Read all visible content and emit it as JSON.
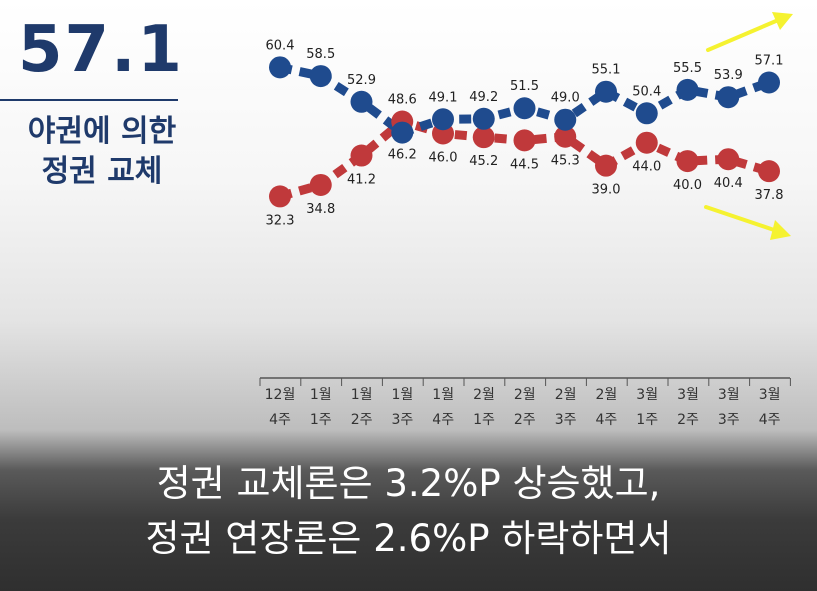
{
  "headline": {
    "value": "57.1",
    "label_line1": "야권에 의한",
    "label_line2": "정권 교체"
  },
  "subtitle": {
    "line1": "정권 교체론은 3.2%P 상승했고,",
    "line2": "정권 연장론은 2.6%P 하락하면서"
  },
  "chart_data": {
    "type": "line",
    "categories": [
      [
        "12월",
        "4주"
      ],
      [
        "1월",
        "1주"
      ],
      [
        "1월",
        "2주"
      ],
      [
        "1월",
        "3주"
      ],
      [
        "1월",
        "4주"
      ],
      [
        "2월",
        "1주"
      ],
      [
        "2월",
        "2주"
      ],
      [
        "2월",
        "3주"
      ],
      [
        "2월",
        "4주"
      ],
      [
        "3월",
        "1주"
      ],
      [
        "3월",
        "2주"
      ],
      [
        "3월",
        "3주"
      ],
      [
        "3월",
        "4주"
      ]
    ],
    "series": [
      {
        "values": [
          60.4,
          58.5,
          52.9,
          46.2,
          49.1,
          49.2,
          51.5,
          49.0,
          55.1,
          50.4,
          55.5,
          53.9,
          57.1
        ],
        "color": "#1f4b8e",
        "trend": "up"
      },
      {
        "values": [
          32.3,
          34.8,
          41.2,
          48.6,
          46.0,
          45.2,
          44.5,
          45.3,
          39.0,
          44.0,
          40.0,
          40.4,
          37.8
        ],
        "color": "#c0393b",
        "trend": "down"
      }
    ],
    "ylim": [
      30,
      62
    ],
    "grid": false,
    "arrow_color": "#f5f230"
  }
}
